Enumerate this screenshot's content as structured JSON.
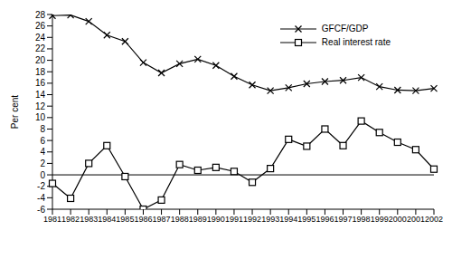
{
  "chart_data": {
    "type": "line",
    "y_label": "Per cent",
    "categories": [
      "1981",
      "1982",
      "1983",
      "1984",
      "1985",
      "1986",
      "1987",
      "1988",
      "1989",
      "1990",
      "1991",
      "1992",
      "1993",
      "1994",
      "1995",
      "1996",
      "1997",
      "1998",
      "1999",
      "2000",
      "2001",
      "2002"
    ],
    "series": [
      {
        "name": "GFCF/GDP",
        "color": "#000000",
        "marker": "x",
        "values": [
          27.8,
          27.9,
          26.8,
          24.4,
          23.3,
          19.6,
          17.8,
          19.4,
          20.2,
          19.1,
          17.2,
          15.7,
          14.7,
          15.2,
          15.9,
          16.3,
          16.5,
          17.0,
          15.4,
          14.8,
          14.7,
          15.1
        ]
      },
      {
        "name": "Real interest rate",
        "color": "#000000",
        "marker": "square",
        "values": [
          -1.5,
          -4.1,
          2.0,
          5.1,
          -0.3,
          -6.0,
          -4.4,
          1.8,
          0.8,
          1.3,
          0.6,
          -1.3,
          1.1,
          6.2,
          5.0,
          8.0,
          5.1,
          9.4,
          7.4,
          5.7,
          4.4,
          1.0
        ]
      }
    ],
    "ylim": [
      -6,
      28
    ],
    "yticks": [
      -6,
      -4,
      -2,
      0,
      2,
      4,
      6,
      8,
      10,
      12,
      14,
      16,
      18,
      20,
      22,
      24,
      26,
      28
    ],
    "legend": "upper right",
    "grid": false
  }
}
